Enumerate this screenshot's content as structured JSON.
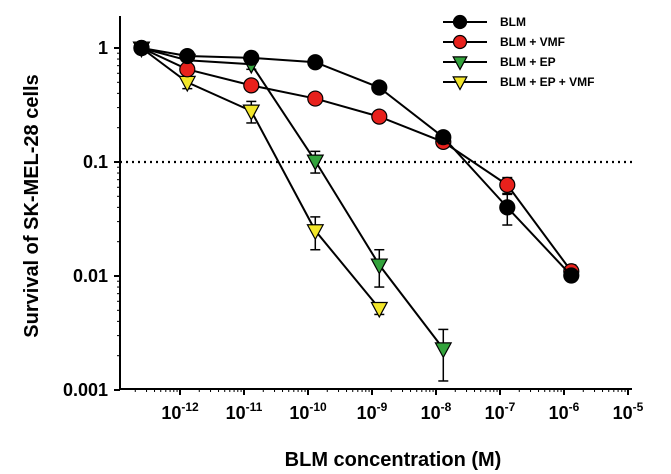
{
  "chart_data": {
    "type": "scatter",
    "xlabel": "BLM concentration (M)",
    "ylabel": "Survival of SK-MEL-28 cells",
    "x_scale": "log",
    "y_scale": "log",
    "xlim": [
      1.5e-13,
      1e-05
    ],
    "ylim": [
      0.001,
      1.6
    ],
    "x_ticks": [
      {
        "value": 1e-12,
        "base": "10",
        "exp": "-12"
      },
      {
        "value": 1e-11,
        "base": "10",
        "exp": "-11"
      },
      {
        "value": 1e-10,
        "base": "10",
        "exp": "-10"
      },
      {
        "value": 1e-09,
        "base": "10",
        "exp": "-9"
      },
      {
        "value": 1e-08,
        "base": "10",
        "exp": "-8"
      },
      {
        "value": 1e-07,
        "base": "10",
        "exp": "-7"
      },
      {
        "value": 1e-06,
        "base": "10",
        "exp": "-6"
      },
      {
        "value": 1e-05,
        "base": "10",
        "exp": "-5"
      }
    ],
    "y_ticks": [
      {
        "value": 1,
        "label": "1"
      },
      {
        "value": 0.1,
        "label": "0.1"
      },
      {
        "value": 0.01,
        "label": "0.01"
      },
      {
        "value": 0.001,
        "label": "0.001"
      }
    ],
    "reference_line": {
      "y": 0.1,
      "style": "dotted"
    },
    "legend_position": "top-right",
    "series": [
      {
        "name": "BLM",
        "marker": "circle",
        "color": "#000000",
        "x": [
          2.5e-13,
          1.3e-12,
          1.3e-11,
          1.3e-10,
          1.3e-09,
          1.3e-08,
          1.3e-07,
          1.3e-06
        ],
        "y": [
          1.0,
          0.85,
          0.82,
          0.75,
          0.45,
          0.165,
          0.04,
          0.0101
        ],
        "err": [
          0,
          0.05,
          0.04,
          0.05,
          0.04,
          0.02,
          0.012,
          0.001
        ]
      },
      {
        "name": "BLM + VMF",
        "marker": "circle",
        "color": "#e8211c",
        "x": [
          2.5e-13,
          1.3e-12,
          1.3e-11,
          1.3e-10,
          1.3e-09,
          1.3e-08,
          1.3e-07,
          1.3e-06
        ],
        "y": [
          1.0,
          0.65,
          0.47,
          0.36,
          0.25,
          0.15,
          0.063,
          0.011
        ],
        "err": [
          0,
          0.06,
          0.04,
          0.03,
          0.02,
          0.015,
          0.01,
          0.0015
        ]
      },
      {
        "name": "BLM + EP",
        "marker": "triangle-down",
        "color": "#33a33c",
        "x": [
          2.5e-13,
          1.3e-12,
          1.3e-11,
          1.3e-10,
          1.3e-09,
          1.3e-08
        ],
        "y": [
          1.0,
          0.78,
          0.72,
          0.102,
          0.0125,
          0.0023
        ],
        "err": [
          0,
          0.07,
          0.07,
          0.022,
          0.0045,
          0.0011
        ]
      },
      {
        "name": "BLM + EP + VMF",
        "marker": "triangle-down",
        "color": "#f2e62a",
        "x": [
          2.5e-13,
          1.3e-12,
          1.3e-11,
          1.3e-10,
          1.3e-09
        ],
        "y": [
          1.0,
          0.5,
          0.28,
          0.025,
          0.0052
        ],
        "err": [
          0,
          0.06,
          0.06,
          0.008,
          0.0006
        ]
      }
    ]
  }
}
